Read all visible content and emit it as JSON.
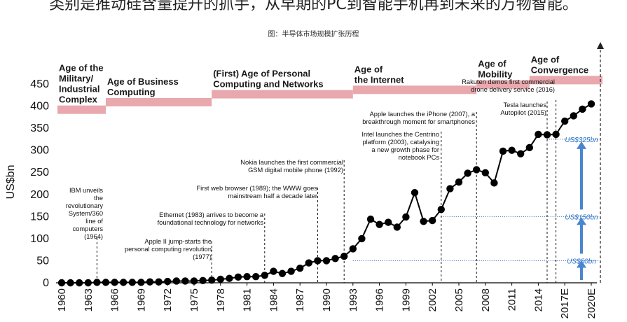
{
  "header_text": "类别是推动硅含量提升的抓手，从早期的PC到智能手机再到未来的万物智能。",
  "caption": "图：半导体市场规模扩张历程",
  "colors": {
    "line": "#000000",
    "era_band": "#e9a8ad",
    "arrow": "#4a86d0",
    "guide": "#2d5fa8"
  },
  "chart_data": {
    "type": "line",
    "ylabel": "US$bn",
    "ylim": [
      0,
      450
    ],
    "y_ticks": [
      0,
      50,
      100,
      150,
      200,
      250,
      300,
      350,
      400,
      450
    ],
    "x_tick_labels": [
      "1960",
      "1963",
      "1966",
      "1969",
      "1972",
      "1975",
      "1978",
      "1981",
      "1984",
      "1987",
      "1990",
      "1993",
      "1996",
      "1999",
      "2002",
      "2005",
      "2008",
      "2011",
      "2014",
      "2017E",
      "2020E"
    ],
    "x": [
      1960,
      1961,
      1962,
      1963,
      1964,
      1965,
      1966,
      1967,
      1968,
      1969,
      1970,
      1971,
      1972,
      1973,
      1974,
      1975,
      1976,
      1977,
      1978,
      1979,
      1980,
      1981,
      1982,
      1983,
      1984,
      1985,
      1986,
      1987,
      1988,
      1989,
      1990,
      1991,
      1992,
      1993,
      1994,
      1995,
      1996,
      1997,
      1998,
      1999,
      2000,
      2001,
      2002,
      2003,
      2004,
      2005,
      2006,
      2007,
      2008,
      2009,
      2010,
      2011,
      2012,
      2013,
      2014,
      2015,
      2016,
      2017,
      2018,
      2019,
      2020
    ],
    "series": [
      {
        "values": [
          0,
          0,
          0,
          0,
          1,
          1,
          1,
          1,
          1,
          1,
          2,
          2,
          3,
          4,
          4,
          4,
          5,
          6,
          8,
          10,
          13,
          14,
          14,
          17,
          26,
          21,
          26,
          33,
          45,
          50,
          50,
          55,
          60,
          77,
          100,
          144,
          132,
          137,
          126,
          149,
          204,
          139,
          141,
          166,
          213,
          228,
          248,
          256,
          249,
          226,
          298,
          300,
          292,
          306,
          336,
          335,
          336,
          366,
          378,
          393,
          405
        ]
      }
    ],
    "eras": [
      {
        "label": "Age of the\nMilitary/\nIndustrial\nComplex",
        "start": 1960,
        "end": 1965,
        "level": 395
      },
      {
        "label": "Age of Business\nComputing",
        "start": 1965,
        "end": 1977,
        "level": 412
      },
      {
        "label": "(First) Age of Personal\nComputing and Networks",
        "start": 1977,
        "end": 1993,
        "level": 430
      },
      {
        "label": "Age of\nthe Internet",
        "start": 1993,
        "end": 2007,
        "level": 440
      },
      {
        "label": "Age of\nMobility",
        "start": 2007,
        "end": 2013,
        "level": 452
      },
      {
        "label": "Age of\nConvergence",
        "start": 2013,
        "end": 2022,
        "level": 462
      }
    ],
    "annotations": [
      {
        "text": "IBM unveils\nthe\nrevolutionary\nSystem/360\nline of\ncomputers\n(1964)",
        "year": 1964,
        "align": "end"
      },
      {
        "text": "Apple II jump-starts the\npersonal computing revolution\n(1977)",
        "year": 1977,
        "align": "end"
      },
      {
        "text": "Ethernet (1983) arrives to become a\nfoundational technology for networks",
        "year": 1983,
        "align": "end"
      },
      {
        "text": "First web browser (1989); the WWW goes\nmainstream half a decade later",
        "year": 1989,
        "align": "end"
      },
      {
        "text": "Nokia launches the first commercial\nGSM digital mobile phone (1992)",
        "year": 1992,
        "align": "end"
      },
      {
        "text": "Intel launches the Centrino\nplatform (2003), catalysing\na new growth phase for\nnotebook PCs",
        "year": 2003,
        "align": "end"
      },
      {
        "text": "Apple launches the iPhone (2007), a\nbreakthrough moment for smartphones",
        "year": 2007,
        "align": "end"
      },
      {
        "text": "Tesla launches\nAutopilot (2015)",
        "year": 2015,
        "align": "end"
      },
      {
        "text": "Rakuten demos first commercial\ndrone delivery service (2016)",
        "year": 2016,
        "align": "end"
      }
    ],
    "reference_levels": [
      {
        "label": "US$50bn",
        "value": 50,
        "from": 1993
      },
      {
        "label": "US$150bn",
        "value": 150,
        "from": 2003
      },
      {
        "label": "US$325bn",
        "value": 325,
        "from": 2015
      }
    ]
  }
}
